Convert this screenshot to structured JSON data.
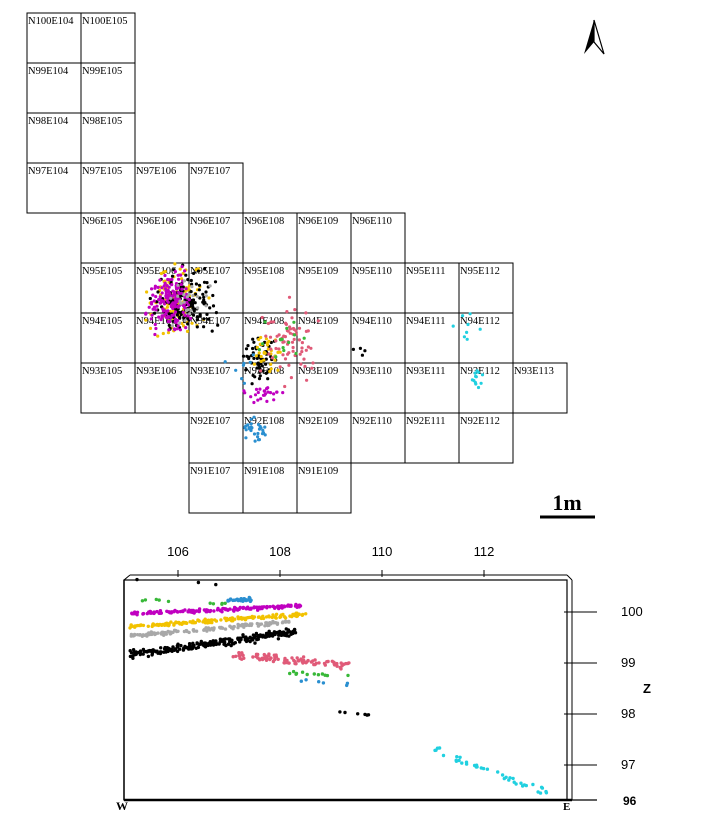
{
  "plan": {
    "north_arrow_icon": "north-arrow-icon",
    "scale_bar_label": "1m",
    "grid_rows": [
      [
        "N100E104",
        "N100E105"
      ],
      [
        "N99E104",
        "N99E105"
      ],
      [
        "N98E104",
        "N98E105"
      ],
      [
        "N97E104",
        "N97E105",
        "N97E106",
        "N97E107"
      ],
      [
        "N96E105",
        "N96E106",
        "N96E107",
        "N96E108",
        "N96E109",
        "N96E110"
      ],
      [
        "N95E105",
        "N95E106",
        "N95E107",
        "N95E108",
        "N95E109",
        "N95E110",
        "N95E111",
        "N95E112"
      ],
      [
        "N94E105",
        "N94E106",
        "N94E107",
        "N94E108",
        "N94E109",
        "N94E110",
        "N94E111",
        "N94E112"
      ],
      [
        "N93E105",
        "N93E106",
        "N93E107",
        "N93E108",
        "N93E109",
        "N93E110",
        "N93E111",
        "N93E112",
        "N93E113"
      ],
      [
        "N92E107",
        "N92E108",
        "N92E109",
        "N92E110",
        "N92E111",
        "N92E112"
      ],
      [
        "N91E107",
        "N91E108",
        "N91E109"
      ]
    ]
  },
  "section": {
    "x_ticks": [
      "106",
      "108",
      "110",
      "112"
    ],
    "z_ticks": [
      "100",
      "99",
      "98",
      "97"
    ],
    "z_axis_label": "Z",
    "bottom_tick_label": "96",
    "left_end_label": "W",
    "right_end_label": "E"
  },
  "colors": {
    "black": "#000000",
    "magenta": "#c000c0",
    "yellow": "#f2c200",
    "gray": "#a8a8a8",
    "blue": "#2a8fd0",
    "pink": "#e05a78",
    "green": "#38b838",
    "cyan": "#20d0e0"
  }
}
